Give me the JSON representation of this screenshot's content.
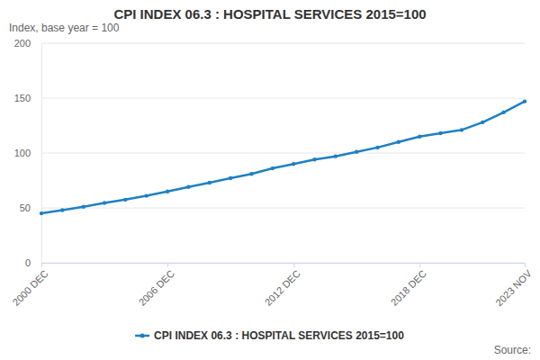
{
  "chart_data": {
    "type": "line",
    "title": "CPI INDEX 06.3 : HOSPITAL SERVICES 2015=100",
    "subtitle": "Index, base year = 100",
    "source": "Source:",
    "categories": [
      "2000 DEC",
      null,
      null,
      null,
      null,
      null,
      "2006 DEC",
      null,
      null,
      null,
      null,
      null,
      "2012 DEC",
      null,
      null,
      null,
      null,
      null,
      "2018 DEC",
      null,
      null,
      null,
      null,
      "2023 NOV"
    ],
    "series": [
      {
        "name": "CPI INDEX 06.3 : HOSPITAL SERVICES 2015=100",
        "color": "#1f80c2",
        "marker": "circle",
        "values": [
          45,
          48,
          51,
          54.5,
          57.5,
          61,
          65,
          69,
          73,
          77,
          81,
          86,
          90,
          94,
          97,
          101,
          105,
          110,
          115,
          118,
          121,
          128,
          137,
          147
        ]
      }
    ],
    "ylim": [
      0,
      200
    ],
    "yticks": [
      0,
      50,
      100,
      150,
      200
    ],
    "grid": true,
    "legend": "bottom"
  }
}
